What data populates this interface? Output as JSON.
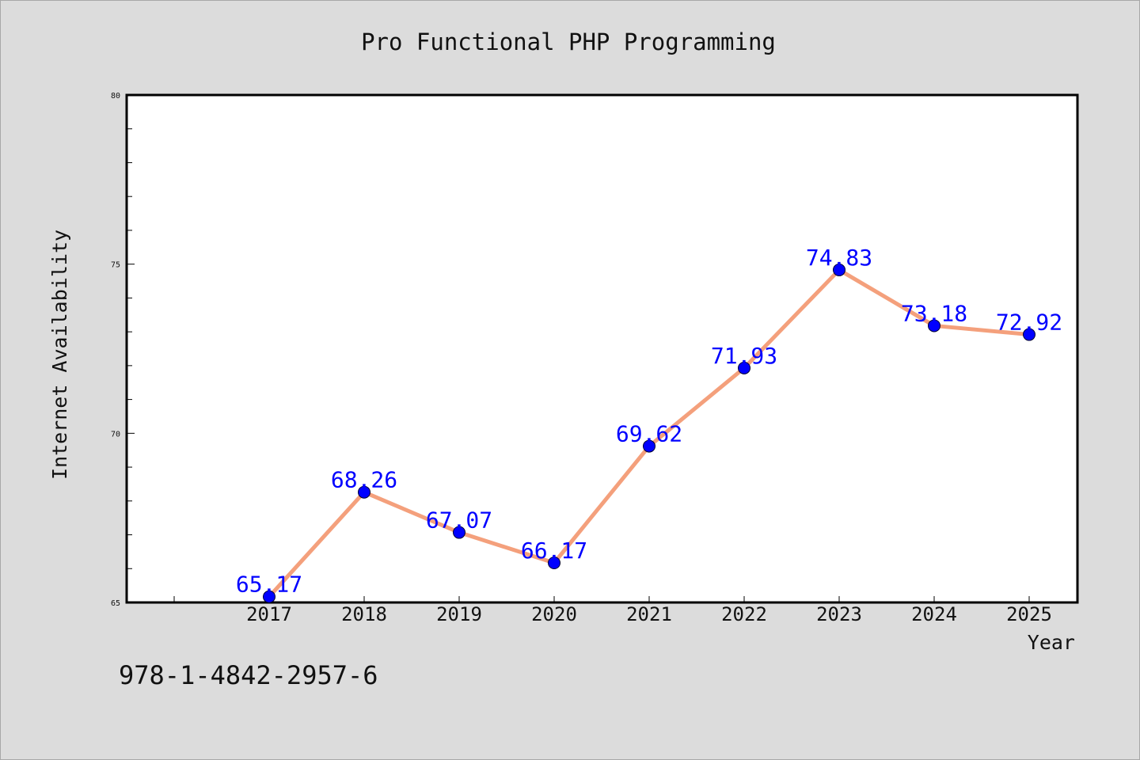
{
  "chart_data": {
    "type": "line",
    "title": "Pro Functional PHP Programming",
    "xlabel": "Year",
    "ylabel": "Internet Availability",
    "categories": [
      "2017",
      "2018",
      "2019",
      "2020",
      "2021",
      "2022",
      "2023",
      "2024",
      "2025"
    ],
    "series": [
      {
        "values": [
          65.17,
          68.26,
          67.07,
          66.17,
          69.62,
          71.93,
          74.83,
          73.18,
          72.92
        ],
        "labels": [
          "65.17",
          "68.26",
          "67.07",
          "66.17",
          "69.62",
          "71.93",
          "74.83",
          "73.18",
          "72.92"
        ]
      }
    ],
    "ylim": [
      65,
      80
    ],
    "yticks": [
      "65",
      "70",
      "75",
      "80"
    ],
    "grid": false,
    "colors": {
      "line": "#f4a07c",
      "marker": "#0000ff",
      "label": "#0000ff",
      "plot_background": "#ffffff",
      "page_background": "#dcdcdc"
    }
  },
  "footer": {
    "isbn": "978-1-4842-2957-6"
  }
}
